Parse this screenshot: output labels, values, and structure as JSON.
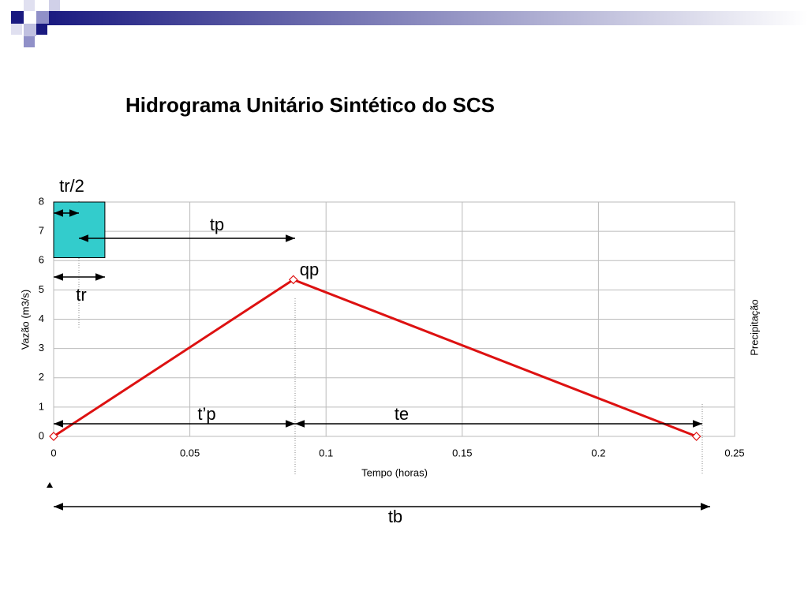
{
  "chart_data": {
    "type": "line",
    "title": "Hidrograma Unitário Sintético do SCS",
    "x_label": "Tempo (horas)",
    "y_label": "Vazão (m3/s)",
    "y2_label": "Precipitação",
    "x": [
      0,
      0.088,
      0.236
    ],
    "values": [
      0,
      5.35,
      0
    ],
    "color": "#dd1111",
    "rain": {
      "x": [
        0,
        0.0188
      ],
      "y": [
        6.1,
        8
      ],
      "color": "#33cccc"
    },
    "xlim": [
      0,
      0.25
    ],
    "xticks": [
      0,
      0.05,
      0.1,
      0.15,
      0.2,
      0.25
    ],
    "ylim": [
      0,
      8
    ],
    "yticks": [
      0,
      1,
      2,
      3,
      4,
      5,
      6,
      7,
      8
    ],
    "grid": true,
    "annotations": [
      "tr/2",
      "tp",
      "qp",
      "tr",
      "t’p",
      "te",
      "tb"
    ]
  }
}
